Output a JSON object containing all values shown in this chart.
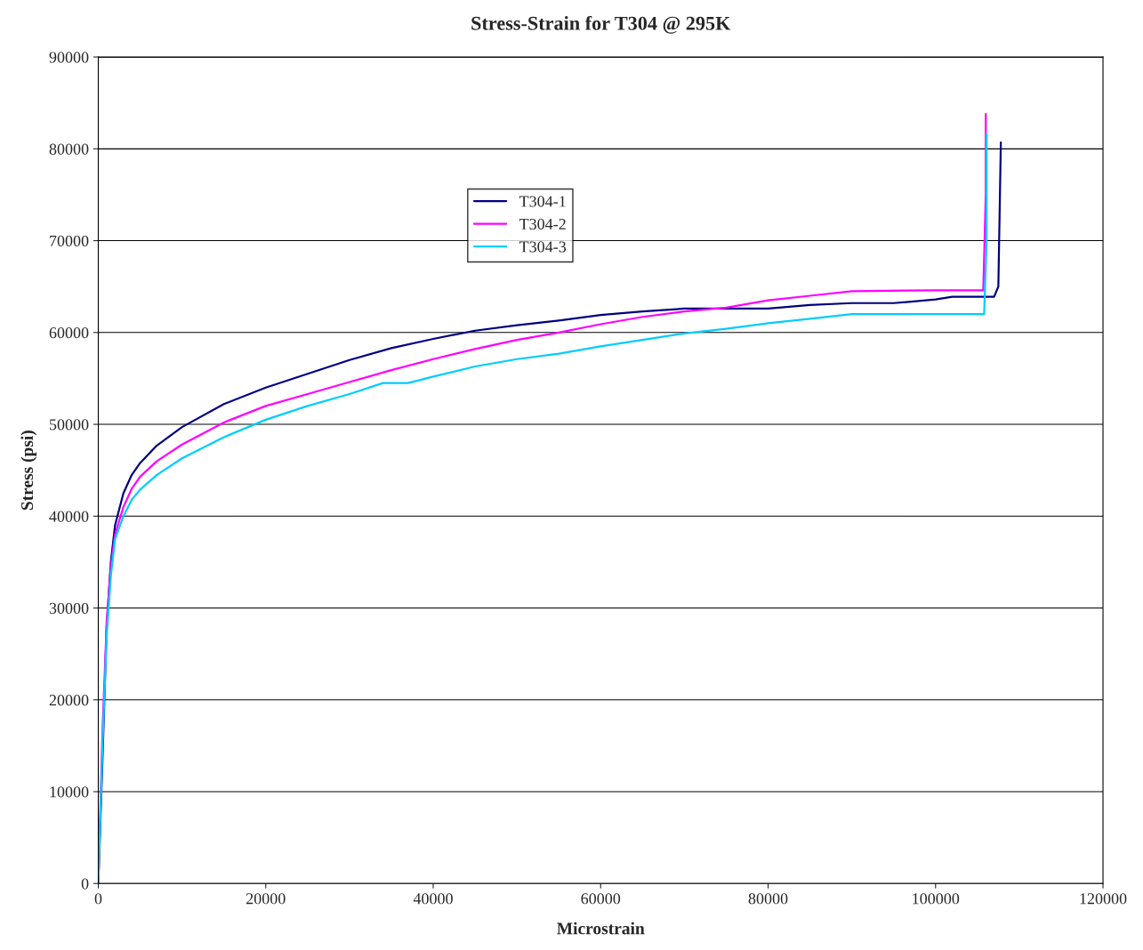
{
  "chart_data": {
    "type": "line",
    "title": "Stress-Strain for T304 @ 295K",
    "xlabel": "Microstrain",
    "ylabel": "Stress (psi)",
    "xlim": [
      0,
      120000
    ],
    "xticks": [
      0,
      20000,
      40000,
      60000,
      80000,
      100000,
      120000
    ],
    "ylim": [
      0,
      90000
    ],
    "yticks": [
      0,
      10000,
      20000,
      30000,
      40000,
      50000,
      60000,
      70000,
      80000,
      90000
    ],
    "grid": "y",
    "legend": "top",
    "marker": "none",
    "line_style": "solid",
    "series": [
      {
        "name": "T304-1",
        "color": "#000080",
        "x": [
          0,
          500,
          1000,
          1500,
          2000,
          3000,
          4000,
          5000,
          7000,
          10000,
          15000,
          20000,
          25000,
          30000,
          35000,
          40000,
          45000,
          50000,
          55000,
          60000,
          65000,
          70000,
          80000,
          85000,
          90000,
          95000,
          100000,
          102000,
          107000,
          107500,
          107800
        ],
        "values": [
          0,
          13500,
          28000,
          35000,
          39000,
          42500,
          44500,
          45800,
          47700,
          49700,
          52200,
          54000,
          55500,
          57000,
          58300,
          59300,
          60200,
          60800,
          61300,
          61900,
          62300,
          62600,
          62600,
          63000,
          63200,
          63200,
          63600,
          63900,
          63900,
          65000,
          80700
        ]
      },
      {
        "name": "T304-2",
        "color": "#ff00ff",
        "x": [
          0,
          500,
          1000,
          1500,
          2000,
          3000,
          4000,
          5000,
          7000,
          10000,
          15000,
          20000,
          25000,
          30000,
          35000,
          40000,
          45000,
          50000,
          55000,
          60000,
          65000,
          70000,
          75000,
          80000,
          85000,
          90000,
          100000,
          105700,
          106000,
          106000
        ],
        "values": [
          0,
          16500,
          28500,
          34500,
          38000,
          41000,
          43000,
          44300,
          46000,
          47800,
          50200,
          52000,
          53300,
          54600,
          55900,
          57100,
          58200,
          59200,
          60000,
          60900,
          61700,
          62300,
          62700,
          63500,
          64000,
          64500,
          64600,
          64600,
          75000,
          83800
        ]
      },
      {
        "name": "T304-3",
        "color": "#00ccff",
        "x": [
          0,
          500,
          1000,
          1500,
          2000,
          3000,
          4000,
          5000,
          7000,
          10000,
          15000,
          20000,
          25000,
          30000,
          34000,
          37000,
          40000,
          45000,
          50000,
          55000,
          60000,
          65000,
          70000,
          75000,
          80000,
          85000,
          90000,
          100000,
          105800,
          106100,
          106100
        ],
        "values": [
          0,
          15000,
          27000,
          33500,
          37500,
          40000,
          41800,
          42900,
          44500,
          46300,
          48600,
          50500,
          52000,
          53300,
          54500,
          54500,
          55200,
          56300,
          57100,
          57700,
          58500,
          59200,
          59900,
          60400,
          61000,
          61500,
          62000,
          62000,
          62000,
          70000,
          81600
        ]
      }
    ]
  }
}
